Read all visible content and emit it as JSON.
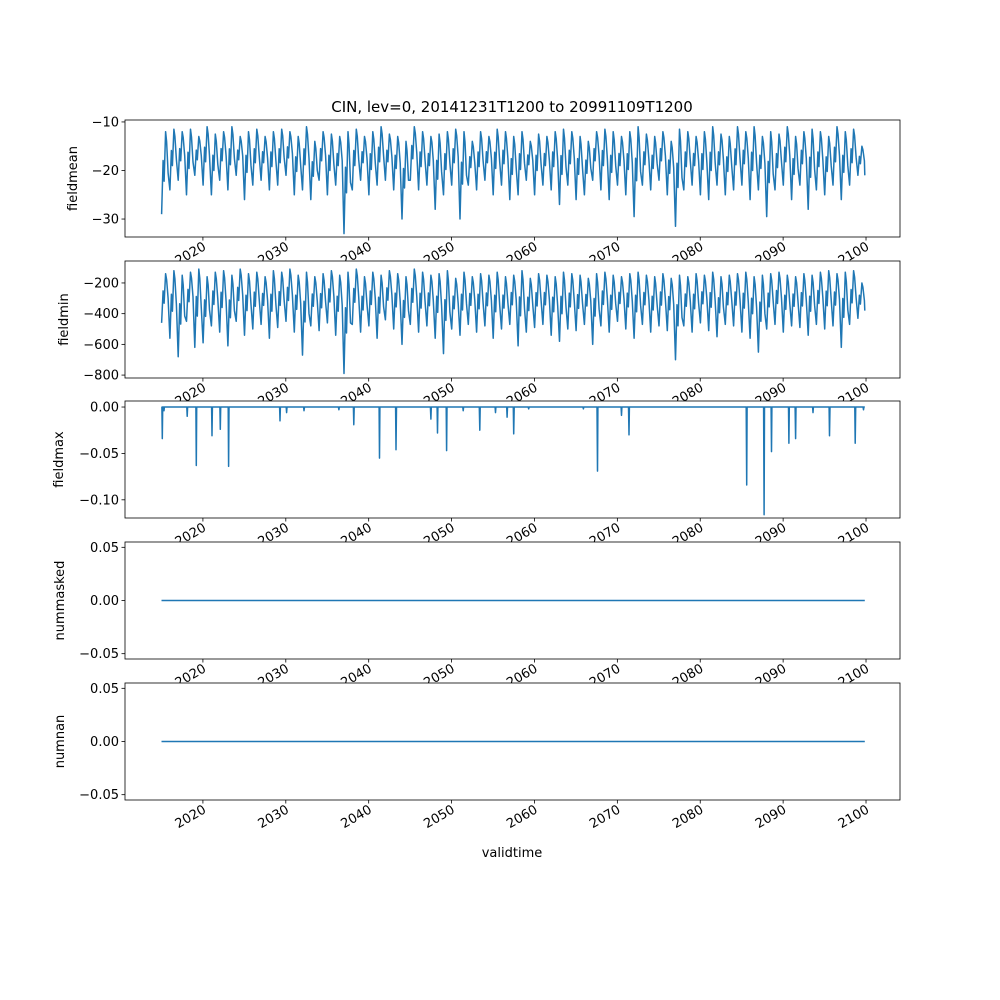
{
  "chart_data": {
    "type": "line",
    "title": "CIN, lev=0, 20141231T1200 to 20991109T1200",
    "xlabel": "validtime",
    "xlim": [
      2010.6,
      2104.1
    ],
    "xticks": [
      "2020",
      "2030",
      "2040",
      "2050",
      "2060",
      "2070",
      "2080",
      "2090",
      "2100"
    ],
    "line_color": "#1f77b4",
    "grid": false,
    "panels": [
      {
        "ylabel": "fieldmean",
        "ylim": [
          -33.7,
          -9.6
        ],
        "yticks": [
          -10,
          -20,
          -30
        ],
        "ytick_labels": [
          "−10",
          "−20",
          "−30"
        ],
        "start_year": 2015,
        "end": [
          2099.85,
          -21
        ],
        "annual_troughs": [
          -29,
          -24,
          -22,
          -25,
          -21,
          -23,
          -25,
          -22,
          -24,
          -21,
          -26,
          -23,
          -22,
          -24,
          -23,
          -21,
          -25,
          -24,
          -26,
          -22,
          -25,
          -23,
          -33,
          -24,
          -22,
          -25,
          -23,
          -22,
          -24,
          -30,
          -22,
          -24,
          -23,
          -28,
          -25,
          -23,
          -30,
          -23,
          -24,
          -22,
          -25,
          -23,
          -26,
          -25,
          -22,
          -25,
          -23,
          -24,
          -27,
          -23,
          -26,
          -25,
          -22,
          -24,
          -26,
          -23,
          -25,
          -29.5,
          -23,
          -24,
          -22,
          -25,
          -31.5,
          -24,
          -23,
          -25,
          -26,
          -23,
          -25,
          -24,
          -23,
          -26,
          -24,
          -29.5,
          -24,
          -23,
          -26,
          -23,
          -28,
          -24,
          -25,
          -23,
          -26,
          -23,
          -21
        ],
        "annual_peaks": [
          -12,
          -11.5,
          -12,
          -11.5,
          -13,
          -11,
          -12.5,
          -12,
          -11,
          -13,
          -12,
          -11.5,
          -13,
          -12,
          -11.5,
          -12,
          -13,
          -11,
          -14,
          -12,
          -12.5,
          -13,
          -12,
          -11.5,
          -13,
          -12,
          -11,
          -12.5,
          -13,
          -14,
          -11,
          -12,
          -13,
          -12.5,
          -12,
          -11.5,
          -12,
          -14,
          -12,
          -13,
          -11.5,
          -12,
          -13,
          -12,
          -14,
          -12.5,
          -13,
          -12,
          -11.5,
          -12,
          -13,
          -14,
          -12,
          -11.5,
          -12,
          -13,
          -12,
          -11,
          -12.5,
          -13,
          -12,
          -14,
          -11.5,
          -12,
          -13,
          -12,
          -11,
          -12.5,
          -13,
          -11,
          -12,
          -11,
          -13,
          -12,
          -12.5,
          -11,
          -13,
          -12,
          -11.5,
          -12,
          -13,
          -11,
          -12,
          -11.5,
          -15
        ]
      },
      {
        "ylabel": "fieldmin",
        "ylim": [
          -819,
          -57
        ],
        "yticks": [
          -200,
          -400,
          -600,
          -800
        ],
        "ytick_labels": [
          "−200",
          "−400",
          "−600",
          "−800"
        ],
        "start_year": 2015,
        "end": [
          2099.85,
          -380
        ],
        "annual_troughs": [
          -460,
          -560,
          -680,
          -450,
          -620,
          -590,
          -480,
          -520,
          -610,
          -450,
          -540,
          -500,
          -470,
          -560,
          -490,
          -450,
          -520,
          -670,
          -480,
          -510,
          -460,
          -540,
          -790,
          -470,
          -520,
          -480,
          -560,
          -440,
          -500,
          -600,
          -470,
          -520,
          -480,
          -560,
          -660,
          -500,
          -540,
          -470,
          -520,
          -480,
          -560,
          -500,
          -470,
          -610,
          -520,
          -490,
          -470,
          -540,
          -580,
          -500,
          -510,
          -470,
          -600,
          -480,
          -520,
          -450,
          -500,
          -560,
          -470,
          -520,
          -480,
          -510,
          -700,
          -480,
          -520,
          -460,
          -510,
          -550,
          -470,
          -480,
          -520,
          -560,
          -650,
          -500,
          -470,
          -520,
          -480,
          -490,
          -540,
          -470,
          -500,
          -480,
          -620,
          -470,
          -430
        ],
        "annual_peaks": [
          -140,
          -120,
          -150,
          -130,
          -110,
          -160,
          -130,
          -120,
          -150,
          -110,
          -140,
          -130,
          -160,
          -120,
          -130,
          -110,
          -150,
          -130,
          -160,
          -140,
          -120,
          -150,
          -130,
          -110,
          -160,
          -130,
          -150,
          -120,
          -140,
          -160,
          -110,
          -130,
          -150,
          -140,
          -120,
          -170,
          -130,
          -160,
          -140,
          -150,
          -130,
          -160,
          -150,
          -120,
          -170,
          -140,
          -150,
          -160,
          -130,
          -140,
          -150,
          -170,
          -140,
          -130,
          -150,
          -160,
          -140,
          -130,
          -150,
          -160,
          -140,
          -170,
          -150,
          -160,
          -140,
          -150,
          -130,
          -160,
          -150,
          -140,
          -130,
          -160,
          -150,
          -140,
          -130,
          -150,
          -160,
          -140,
          -150,
          -130,
          -120,
          -140,
          -130,
          -120,
          -200
        ]
      },
      {
        "ylabel": "fieldmax",
        "ylim": [
          -0.1196,
          0.0065
        ],
        "yticks": [
          0.0,
          -0.05,
          -0.1
        ],
        "ytick_labels": [
          "0.00",
          "−0.05",
          "−0.10"
        ],
        "baseline": 0,
        "x_range": [
          2015,
          2099.85
        ],
        "spikes": [
          [
            2015.1,
            -0.034
          ],
          [
            2015.3,
            -0.004
          ],
          [
            2018.1,
            -0.01
          ],
          [
            2019.2,
            -0.063
          ],
          [
            2021.1,
            -0.031
          ],
          [
            2022.1,
            -0.024
          ],
          [
            2023.1,
            -0.064
          ],
          [
            2029.3,
            -0.015
          ],
          [
            2030.1,
            -0.006
          ],
          [
            2032.2,
            -0.004
          ],
          [
            2036.4,
            -0.003
          ],
          [
            2038.2,
            -0.019
          ],
          [
            2041.3,
            -0.055
          ],
          [
            2043.3,
            -0.046
          ],
          [
            2047.5,
            -0.013
          ],
          [
            2048.3,
            -0.028
          ],
          [
            2049.4,
            -0.047
          ],
          [
            2051.4,
            -0.004
          ],
          [
            2053.4,
            -0.025
          ],
          [
            2055.3,
            -0.006
          ],
          [
            2056.7,
            -0.011
          ],
          [
            2057.5,
            -0.029
          ],
          [
            2059.3,
            -0.002
          ],
          [
            2065.9,
            -0.002
          ],
          [
            2067.6,
            -0.069
          ],
          [
            2070.5,
            -0.009
          ],
          [
            2071.4,
            -0.03
          ],
          [
            2085.6,
            -0.084
          ],
          [
            2087.7,
            -0.116
          ],
          [
            2088.6,
            -0.048
          ],
          [
            2090.7,
            -0.039
          ],
          [
            2091.5,
            -0.034
          ],
          [
            2093.6,
            -0.006
          ],
          [
            2095.6,
            -0.031
          ],
          [
            2098.7,
            -0.039
          ],
          [
            2099.7,
            -0.003
          ]
        ]
      },
      {
        "ylabel": "nummasked",
        "ylim": [
          -0.055,
          0.055
        ],
        "yticks": [
          0.05,
          0.0,
          -0.05
        ],
        "ytick_labels": [
          "0.05",
          "0.00",
          "−0.05"
        ],
        "baseline": 0,
        "x_range": [
          2015,
          2099.85
        ]
      },
      {
        "ylabel": "numnan",
        "ylim": [
          -0.055,
          0.055
        ],
        "yticks": [
          0.05,
          0.0,
          -0.05
        ],
        "ytick_labels": [
          "0.05",
          "0.00",
          "−0.05"
        ],
        "baseline": 0,
        "x_range": [
          2015,
          2099.85
        ]
      }
    ]
  }
}
